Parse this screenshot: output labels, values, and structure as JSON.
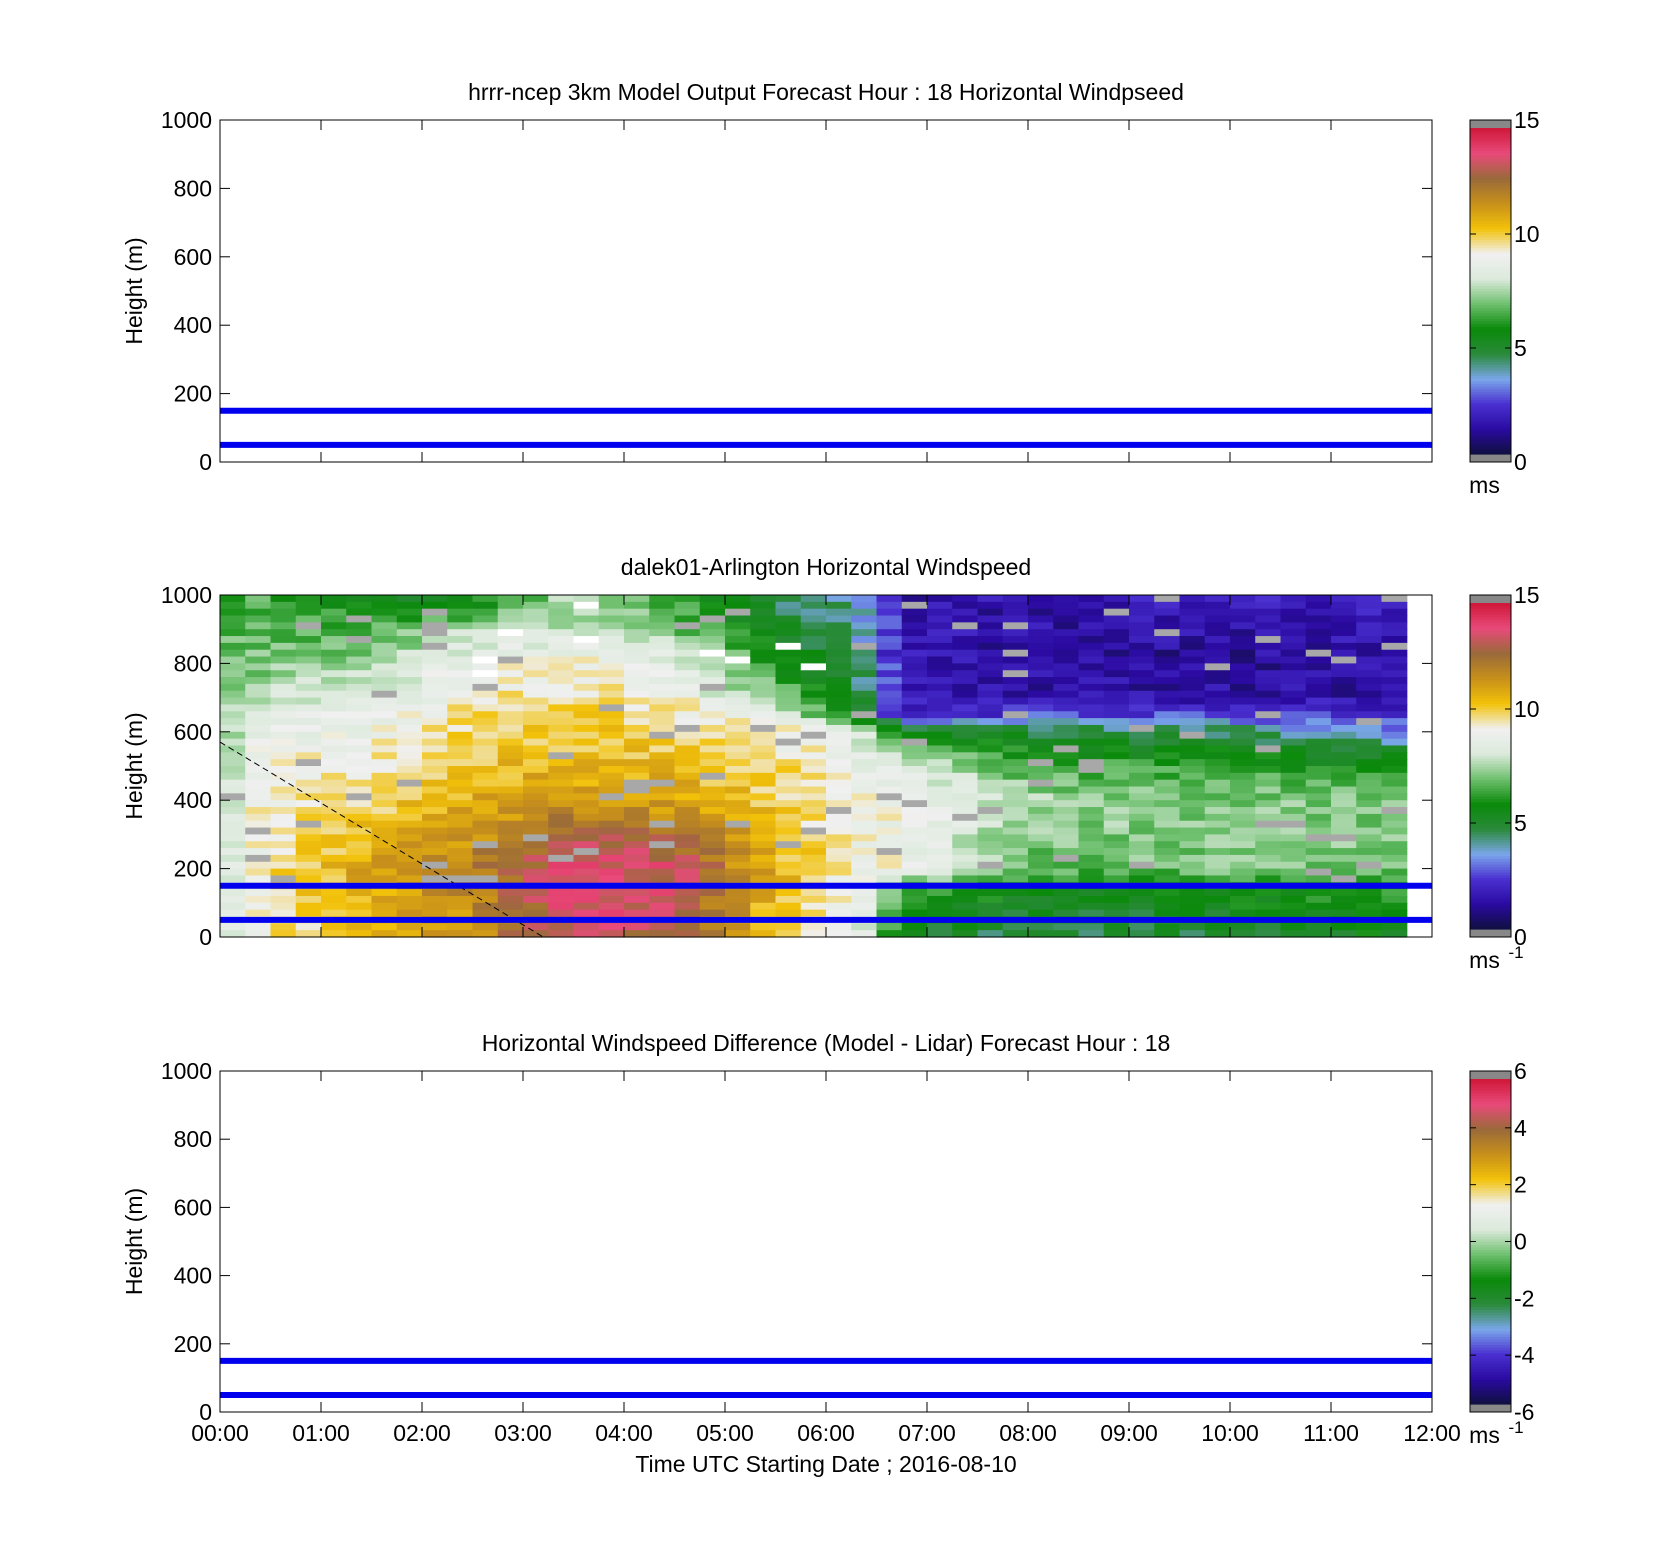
{
  "chart_data": [
    {
      "type": "heatmap",
      "title": "hrrr-ncep 3km Model Output   Forecast Hour : 18 Horizontal Windpseed",
      "ylabel": "Height (m)",
      "xlabel": "",
      "ylim": [
        0,
        1000
      ],
      "yticks": [
        "0",
        "200",
        "400",
        "600",
        "800",
        "1000"
      ],
      "xlim_hours": [
        0,
        12
      ],
      "hlines_m": [
        50,
        150
      ],
      "colorbar": {
        "min": 0,
        "max": 15,
        "ticks": [
          "0",
          "5",
          "10",
          "15"
        ],
        "unit": "ms",
        "unit_sup": ""
      },
      "values": []
    },
    {
      "type": "heatmap",
      "title": "dalek01-Arlington  Horizontal Windspeed",
      "ylabel": "Height (m)",
      "xlabel": "",
      "ylim": [
        0,
        1000
      ],
      "yticks": [
        "0",
        "200",
        "400",
        "600",
        "800",
        "1000"
      ],
      "xlim_hours": [
        0,
        12
      ],
      "hlines_m": [
        50,
        150
      ],
      "dashed_line": {
        "from": [
          0,
          570
        ],
        "to": [
          3.2,
          0
        ]
      },
      "colorbar": {
        "min": 0,
        "max": 15,
        "ticks": [
          "0",
          "5",
          "10",
          "15"
        ],
        "unit": "ms",
        "unit_sup": "-1"
      },
      "grid": {
        "time_start_h": 0,
        "time_step_h": 0.25,
        "height_top_m": 1000,
        "height_step_m": 20,
        "time_columns": 47,
        "height_rows": 50,
        "valid_until_h": 11.75,
        "note_values": "wind speed (m/s) approximated per time column and height band"
      },
      "profile_keyframes": [
        {
          "t": 0.0,
          "h": [
            1000,
            800,
            600,
            400,
            200,
            0
          ],
          "v": [
            6.5,
            6.8,
            7.0,
            7.5,
            7.8,
            8.0
          ]
        },
        {
          "t": 0.4,
          "h": [
            1000,
            800,
            600,
            400,
            200,
            0
          ],
          "v": [
            6.5,
            7.0,
            8.8,
            9.2,
            9.5,
            9.5
          ]
        },
        {
          "t": 1.5,
          "h": [
            1000,
            900,
            800,
            600,
            400,
            200,
            0
          ],
          "v": [
            5.0,
            6.5,
            7.5,
            9.0,
            10.0,
            11.0,
            10.5
          ]
        },
        {
          "t": 2.5,
          "h": [
            1000,
            900,
            800,
            600,
            400,
            200,
            0
          ],
          "v": [
            5.2,
            7.5,
            9.0,
            10.0,
            10.8,
            12.0,
            11.5
          ]
        },
        {
          "t": 3.5,
          "h": [
            1000,
            900,
            800,
            600,
            400,
            300,
            200,
            0
          ],
          "v": [
            7.5,
            8.0,
            9.2,
            10.2,
            11.2,
            13.2,
            13.8,
            13.5
          ]
        },
        {
          "t": 4.5,
          "h": [
            1000,
            900,
            800,
            600,
            400,
            300,
            200,
            0
          ],
          "v": [
            6.0,
            7.0,
            8.5,
            10.0,
            11.0,
            12.5,
            13.5,
            13.0
          ]
        },
        {
          "t": 5.5,
          "h": [
            1000,
            900,
            800,
            700,
            600,
            400,
            200,
            0
          ],
          "v": [
            4.5,
            5.0,
            6.0,
            7.2,
            9.5,
            10.2,
            10.8,
            10.0
          ]
        },
        {
          "t": 6.3,
          "h": [
            1000,
            800,
            650,
            600,
            400,
            200,
            0
          ],
          "v": [
            3.8,
            4.5,
            5.5,
            8.5,
            9.0,
            9.2,
            8.8
          ]
        },
        {
          "t": 6.75,
          "h": [
            1000,
            800,
            650,
            600,
            500,
            400,
            200,
            150,
            0
          ],
          "v": [
            1.5,
            1.6,
            1.8,
            5.0,
            8.5,
            9.0,
            9.0,
            6.5,
            5.0
          ]
        },
        {
          "t": 8.0,
          "h": [
            1000,
            800,
            700,
            650,
            600,
            500,
            400,
            200,
            150,
            0
          ],
          "v": [
            1.4,
            1.2,
            1.5,
            2.5,
            4.8,
            6.5,
            7.5,
            6.8,
            5.5,
            4.5
          ]
        },
        {
          "t": 10.0,
          "h": [
            1000,
            800,
            700,
            650,
            600,
            500,
            400,
            200,
            150,
            0
          ],
          "v": [
            1.8,
            1.0,
            1.4,
            2.5,
            4.5,
            6.0,
            7.2,
            7.0,
            5.8,
            4.8
          ]
        },
        {
          "t": 11.75,
          "h": [
            1000,
            800,
            700,
            600,
            550,
            500,
            400,
            200,
            150,
            0
          ],
          "v": [
            1.8,
            1.3,
            1.3,
            3.0,
            4.5,
            6.0,
            7.0,
            7.2,
            6.0,
            5.5
          ]
        }
      ]
    },
    {
      "type": "heatmap",
      "title": "Horizontal Windspeed Difference (Model - Lidar) Forecast Hour : 18",
      "ylabel": "Height (m)",
      "xlabel": "Time UTC  Starting Date ; 2016-08-10",
      "ylim": [
        0,
        1000
      ],
      "yticks": [
        "0",
        "200",
        "400",
        "600",
        "800",
        "1000"
      ],
      "xlim_hours": [
        0,
        12
      ],
      "xticks": [
        "00:00",
        "01:00",
        "02:00",
        "03:00",
        "04:00",
        "05:00",
        "06:00",
        "07:00",
        "08:00",
        "09:00",
        "10:00",
        "11:00",
        "12:00"
      ],
      "hlines_m": [
        50,
        150
      ],
      "colorbar": {
        "min": -6,
        "max": 6,
        "ticks": [
          "-6",
          "-4",
          "-2",
          "0",
          "2",
          "4",
          "6"
        ],
        "unit": "ms",
        "unit_sup": "-1"
      },
      "values": []
    }
  ],
  "colors": {
    "hline": "#0000ee",
    "colormap": [
      "#888888",
      "#101040",
      "#2a0aa0",
      "#4a30d0",
      "#7aa6ea",
      "#2a8a3a",
      "#0a8a0a",
      "#6fc06f",
      "#dceadc",
      "#f0f0f0",
      "#f2c20a",
      "#c8901a",
      "#9a6a3a",
      "#e84a7a",
      "#d0183a",
      "#888888"
    ]
  }
}
